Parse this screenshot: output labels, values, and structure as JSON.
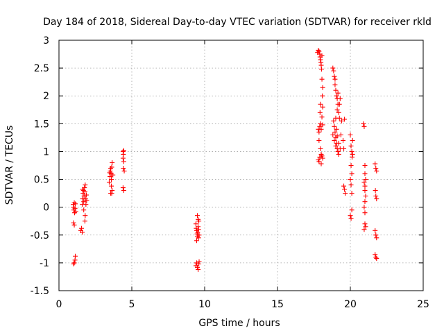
{
  "chart_data": {
    "type": "scatter",
    "title": "Day 184 of 2018, Sidereal Day-to-day VTEC variation (SDTVAR) for receiver rkld",
    "xlabel": "GPS time / hours",
    "ylabel": "SDTVAR / TECUs",
    "xlim": [
      0,
      25
    ],
    "ylim": [
      -1.5,
      3
    ],
    "grid": true,
    "marker": "+",
    "color": "#ff0000",
    "x_ticks": [
      "0",
      "5",
      "10",
      "15",
      "20",
      "25"
    ],
    "y_ticks": [
      "-1.5",
      "-1",
      "-0.5",
      "0",
      "0.5",
      "1",
      "1.5",
      "2",
      "2.5",
      "3"
    ],
    "series": [
      {
        "name": "SDTVAR",
        "points": [
          [
            0.98,
            0.05
          ],
          [
            1.0,
            0.0
          ],
          [
            1.02,
            -0.05
          ],
          [
            1.05,
            0.08
          ],
          [
            1.07,
            -0.1
          ],
          [
            1.0,
            -0.28
          ],
          [
            1.05,
            -0.32
          ],
          [
            1.1,
            -0.02
          ],
          [
            1.12,
            0.06
          ],
          [
            1.15,
            -0.08
          ],
          [
            1.0,
            -1.02
          ],
          [
            1.05,
            -1.0
          ],
          [
            1.1,
            -0.95
          ],
          [
            1.12,
            -0.88
          ],
          [
            1.5,
            -0.42
          ],
          [
            1.55,
            -0.38
          ],
          [
            1.6,
            -0.45
          ],
          [
            1.6,
            0.05
          ],
          [
            1.62,
            0.15
          ],
          [
            1.65,
            0.25
          ],
          [
            1.68,
            0.3
          ],
          [
            1.7,
            0.1
          ],
          [
            1.72,
            0.2
          ],
          [
            1.75,
            0.35
          ],
          [
            1.78,
            0.28
          ],
          [
            1.8,
            0.4
          ],
          [
            1.82,
            0.15
          ],
          [
            1.85,
            0.05
          ],
          [
            1.78,
            -0.25
          ],
          [
            1.8,
            -0.15
          ],
          [
            1.88,
            0.22
          ],
          [
            1.9,
            0.12
          ],
          [
            1.62,
            0.32
          ],
          [
            1.7,
            -0.05
          ],
          [
            3.45,
            0.45
          ],
          [
            3.5,
            0.55
          ],
          [
            3.52,
            0.65
          ],
          [
            3.55,
            0.7
          ],
          [
            3.58,
            0.6
          ],
          [
            3.6,
            0.5
          ],
          [
            3.62,
            0.72
          ],
          [
            3.65,
            0.8
          ],
          [
            3.6,
            0.38
          ],
          [
            3.65,
            0.3
          ],
          [
            3.55,
            0.25
          ],
          [
            3.62,
            0.25
          ],
          [
            3.48,
            0.62
          ],
          [
            3.7,
            0.58
          ],
          [
            4.4,
            1.0
          ],
          [
            4.42,
            0.95
          ],
          [
            4.45,
            1.02
          ],
          [
            4.4,
            0.88
          ],
          [
            4.45,
            0.82
          ],
          [
            4.42,
            0.7
          ],
          [
            4.48,
            0.65
          ],
          [
            4.4,
            0.35
          ],
          [
            4.45,
            0.3
          ],
          [
            9.4,
            -0.3
          ],
          [
            9.42,
            -0.38
          ],
          [
            9.45,
            -0.42
          ],
          [
            9.48,
            -0.48
          ],
          [
            9.5,
            -0.52
          ],
          [
            9.52,
            -0.45
          ],
          [
            9.55,
            -0.35
          ],
          [
            9.58,
            -0.55
          ],
          [
            9.6,
            -0.25
          ],
          [
            9.45,
            -0.6
          ],
          [
            9.5,
            -0.15
          ],
          [
            9.55,
            -0.22
          ],
          [
            9.4,
            -1.05
          ],
          [
            9.45,
            -1.0
          ],
          [
            9.5,
            -1.08
          ],
          [
            9.55,
            -1.12
          ],
          [
            9.6,
            -1.02
          ],
          [
            9.62,
            -0.98
          ],
          [
            9.58,
            -0.4
          ],
          [
            9.62,
            -0.5
          ],
          [
            17.75,
            2.78
          ],
          [
            17.8,
            2.82
          ],
          [
            17.85,
            2.8
          ],
          [
            17.9,
            2.75
          ],
          [
            17.92,
            2.7
          ],
          [
            17.95,
            2.65
          ],
          [
            17.98,
            2.6
          ],
          [
            18.0,
            2.55
          ],
          [
            18.05,
            2.72
          ],
          [
            18.02,
            2.48
          ],
          [
            17.8,
            1.4
          ],
          [
            17.85,
            1.35
          ],
          [
            17.9,
            1.45
          ],
          [
            17.95,
            1.5
          ],
          [
            18.0,
            1.4
          ],
          [
            17.92,
            1.7
          ],
          [
            17.95,
            1.85
          ],
          [
            17.85,
            1.2
          ],
          [
            17.95,
            1.05
          ],
          [
            18.05,
            2.3
          ],
          [
            18.1,
            2.15
          ],
          [
            18.08,
            2.0
          ],
          [
            18.1,
            1.8
          ],
          [
            18.05,
            1.62
          ],
          [
            18.1,
            1.48
          ],
          [
            17.8,
            0.85
          ],
          [
            17.85,
            0.82
          ],
          [
            17.9,
            0.9
          ],
          [
            18.0,
            0.95
          ],
          [
            18.05,
            0.92
          ],
          [
            18.1,
            0.88
          ],
          [
            18.0,
            0.78
          ],
          [
            18.8,
            2.5
          ],
          [
            18.85,
            2.45
          ],
          [
            18.9,
            2.35
          ],
          [
            18.95,
            2.2
          ],
          [
            19.0,
            2.1
          ],
          [
            19.05,
            2.0
          ],
          [
            19.1,
            1.95
          ],
          [
            19.15,
            1.85
          ],
          [
            19.2,
            1.7
          ],
          [
            19.25,
            1.6
          ],
          [
            18.85,
            1.55
          ],
          [
            18.9,
            1.45
          ],
          [
            18.95,
            1.35
          ],
          [
            19.0,
            1.25
          ],
          [
            19.05,
            1.15
          ],
          [
            19.1,
            1.05
          ],
          [
            19.15,
            1.0
          ],
          [
            19.2,
            0.95
          ],
          [
            18.8,
            1.3
          ],
          [
            18.9,
            1.2
          ],
          [
            19.0,
            1.1
          ],
          [
            19.1,
            1.28
          ],
          [
            19.2,
            1.15
          ],
          [
            19.3,
            1.05
          ],
          [
            19.25,
            1.85
          ],
          [
            19.3,
            1.95
          ],
          [
            19.4,
            1.55
          ],
          [
            19.5,
            1.2
          ],
          [
            19.55,
            1.05
          ],
          [
            19.6,
            1.58
          ],
          [
            19.1,
            1.75
          ],
          [
            19.0,
            1.6
          ],
          [
            19.15,
            2.05
          ],
          [
            18.95,
            2.3
          ],
          [
            19.05,
            1.4
          ],
          [
            19.35,
            1.3
          ],
          [
            19.55,
            0.38
          ],
          [
            19.6,
            0.32
          ],
          [
            19.65,
            0.25
          ],
          [
            20.0,
            1.3
          ],
          [
            20.05,
            1.1
          ],
          [
            20.1,
            1.0
          ],
          [
            20.12,
            0.9
          ],
          [
            20.05,
            0.75
          ],
          [
            20.1,
            0.6
          ],
          [
            20.0,
            0.5
          ],
          [
            20.05,
            0.4
          ],
          [
            20.1,
            0.25
          ],
          [
            20.15,
            1.2
          ],
          [
            20.0,
            -0.15
          ],
          [
            20.05,
            -0.2
          ],
          [
            20.1,
            -0.05
          ],
          [
            20.15,
            0.95
          ],
          [
            20.9,
            1.5
          ],
          [
            20.95,
            1.45
          ],
          [
            21.0,
            0.75
          ],
          [
            21.0,
            0.6
          ],
          [
            21.05,
            0.5
          ],
          [
            20.95,
            0.45
          ],
          [
            21.0,
            0.3
          ],
          [
            21.05,
            0.2
          ],
          [
            21.0,
            0.1
          ],
          [
            20.95,
            0.0
          ],
          [
            21.0,
            -0.1
          ],
          [
            21.0,
            -0.3
          ],
          [
            21.05,
            -0.35
          ],
          [
            20.95,
            -0.4
          ],
          [
            21.0,
            0.38
          ],
          [
            21.7,
            0.78
          ],
          [
            21.75,
            0.7
          ],
          [
            21.8,
            0.65
          ],
          [
            21.72,
            0.3
          ],
          [
            21.75,
            0.2
          ],
          [
            21.8,
            0.15
          ],
          [
            21.7,
            -0.42
          ],
          [
            21.75,
            -0.5
          ],
          [
            21.8,
            -0.55
          ],
          [
            21.7,
            -0.85
          ],
          [
            21.75,
            -0.9
          ],
          [
            21.8,
            -0.92
          ]
        ]
      }
    ]
  }
}
